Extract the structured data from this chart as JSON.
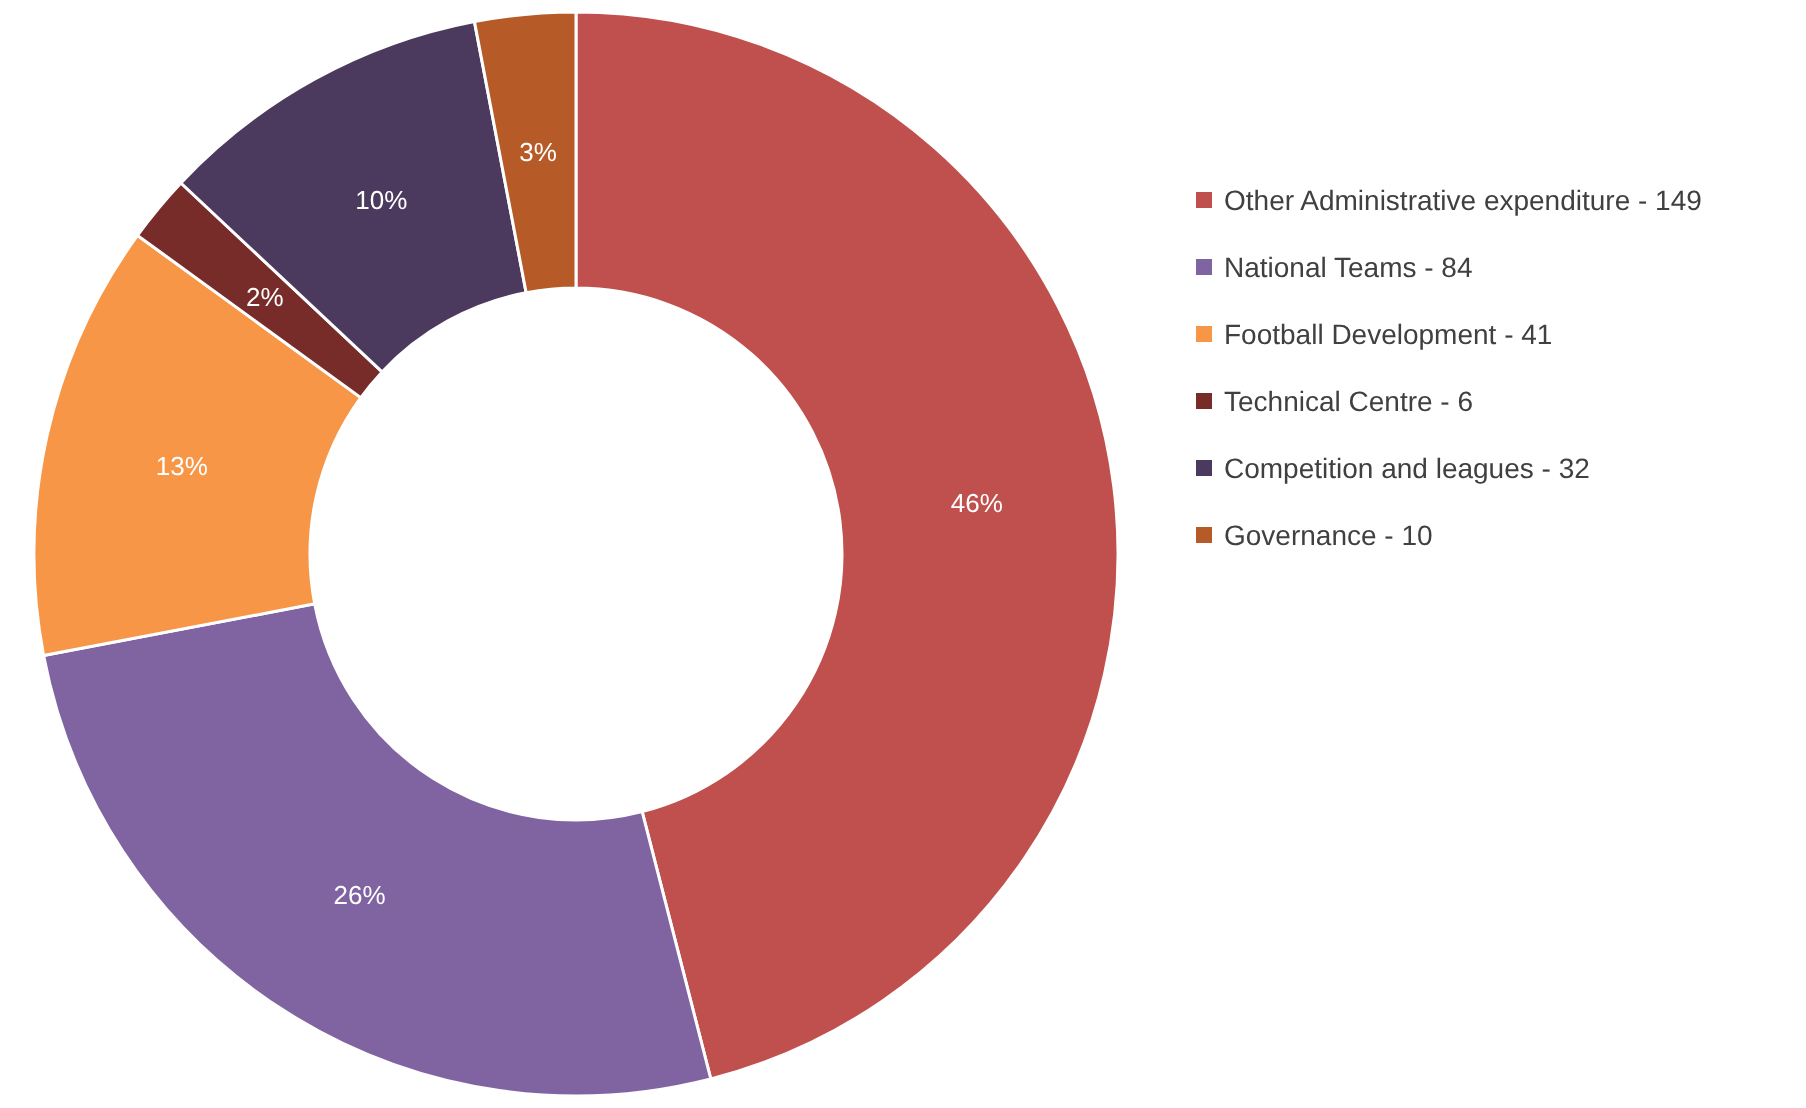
{
  "chart_data": {
    "type": "donut",
    "categories": [
      "Other Administrative expenditure - 149",
      "National Teams - 84",
      "Football Development - 41",
      "Technical Centre - 6",
      "Competition and leagues - 32",
      "Governance - 10"
    ],
    "values": [
      46,
      26,
      13,
      2,
      10,
      3
    ],
    "colors": [
      "#c0504d",
      "#8064a2",
      "#f79646",
      "#772c2a",
      "#4b3a5e",
      "#b65a28"
    ],
    "value_labels": [
      "46%",
      "26%",
      "13%",
      "2%",
      "10%",
      "3%"
    ],
    "legend": "right"
  }
}
